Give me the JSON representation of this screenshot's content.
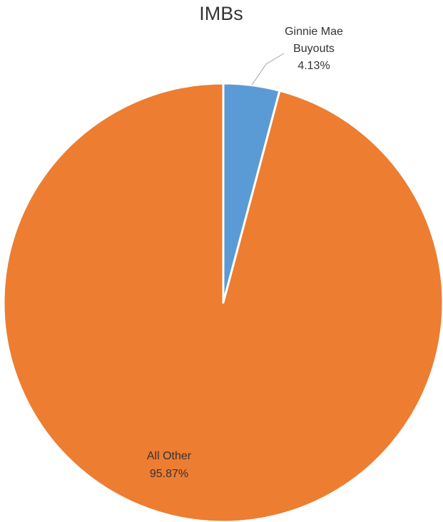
{
  "chart_data": {
    "type": "pie",
    "title": "IMBs",
    "slices": [
      {
        "label_lines": [
          "Ginnie  Mae",
          "Buyouts"
        ],
        "value_label": "4.13%",
        "value": 4.13,
        "color": "#5b9bd5"
      },
      {
        "label_lines": [
          "All Other"
        ],
        "value_label": "95.87%",
        "value": 95.87,
        "color": "#ed7d31"
      }
    ],
    "start_angle_deg": 0,
    "direction": "clockwise",
    "slice_border_color": "#ffffff",
    "leader_line_color": "#a6a6a6"
  }
}
